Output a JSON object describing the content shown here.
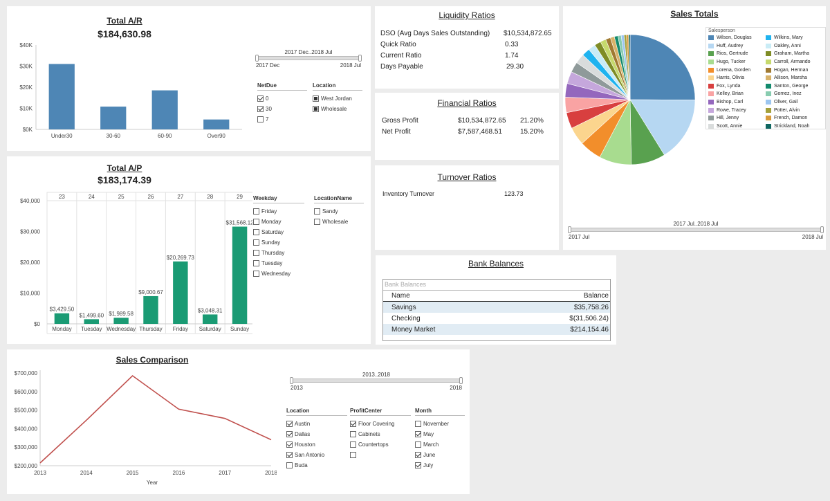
{
  "total_ar": {
    "title": "Total A/R",
    "total": "$184,630.98",
    "slider": {
      "label": "2017 Dec..2018 Jul",
      "start": "2017 Dec",
      "end": "2018 Jul"
    },
    "filters": {
      "netdue": {
        "title": "NetDue",
        "items": [
          {
            "label": "0",
            "checked": true
          },
          {
            "label": "30",
            "checked": true
          },
          {
            "label": "7",
            "checked": false
          }
        ]
      },
      "location": {
        "title": "Location",
        "items": [
          {
            "label": "West Jordan",
            "checked": true
          },
          {
            "label": "Wholesale",
            "checked": true
          }
        ]
      }
    },
    "chart_data": {
      "type": "bar",
      "categories": [
        "Under30",
        "30-60",
        "60-90",
        "Over90"
      ],
      "values": [
        31000,
        10800,
        18500,
        4700
      ],
      "y_ticks": [
        "$0K",
        "$10K",
        "$20K",
        "$30K",
        "$40K"
      ],
      "ylim": [
        0,
        40000
      ],
      "color": "#4e86b5"
    }
  },
  "total_ap": {
    "title": "Total A/P",
    "total": "$183,174.39",
    "filters": {
      "weekday": {
        "title": "Weekday",
        "items": [
          "Friday",
          "Monday",
          "Saturday",
          "Sunday",
          "Thursday",
          "Tuesday",
          "Wednesday"
        ]
      },
      "locationname": {
        "title": "LocationName",
        "items": [
          "Sandy",
          "Wholesale"
        ]
      }
    },
    "chart_data": {
      "type": "bar",
      "top_labels": [
        "23",
        "24",
        "25",
        "26",
        "27",
        "28",
        "29"
      ],
      "categories": [
        "Monday",
        "Tuesday",
        "Wednesday",
        "Thursday",
        "Friday",
        "Saturday",
        "Sunday"
      ],
      "values": [
        3429.5,
        1499.6,
        1989.58,
        9000.67,
        20269.73,
        3048.31,
        31568.12
      ],
      "data_labels": [
        "$3,429.50",
        "$1,499.60",
        "$1,989.58",
        "$9,000.67",
        "$20,269.73",
        "$3,048.31",
        "$31,568.12"
      ],
      "y_ticks": [
        "$0",
        "$10,000",
        "$20,000",
        "$30,000",
        "$40,000"
      ],
      "ylim": [
        0,
        40000
      ],
      "color": "#1a9b74"
    }
  },
  "liquidity": {
    "title": "Liquidity Ratios",
    "rows": [
      {
        "label": "DSO (Avg Days Sales Outstanding)",
        "value": "$10,534,872.65"
      },
      {
        "label": "Quick Ratio",
        "value": "0.33"
      },
      {
        "label": "Current Ratio",
        "value": "1.74"
      },
      {
        "label": "Days Payable",
        "value": "29.30"
      }
    ]
  },
  "financial": {
    "title": "Financial Ratios",
    "rows": [
      {
        "label": "Gross Profit",
        "value": "$10,534,872.65",
        "pct": "21.20%"
      },
      {
        "label": "Net Profit",
        "value": "$7,587,468.51",
        "pct": "15.20%"
      }
    ]
  },
  "turnover": {
    "title": "Turnover Ratios",
    "rows": [
      {
        "label": "Inventory Turnover",
        "value": "123.73"
      }
    ]
  },
  "bank": {
    "title": "Bank Balances",
    "table_title": "Bank Balances",
    "headers": {
      "name": "Name",
      "balance": "Balance"
    },
    "rows": [
      {
        "name": "Savings",
        "balance": "$35,758.26"
      },
      {
        "name": "Checking",
        "balance": "$(31,506.24)"
      },
      {
        "name": "Money Market",
        "balance": "$214,154.46"
      }
    ]
  },
  "sales_totals": {
    "title": "Sales Totals",
    "legend_title": "Salesperson",
    "slider": {
      "label": "2017 Jul..2018 Jul",
      "start": "2017 Jul",
      "end": "2018 Jul"
    },
    "chart_data": {
      "type": "pie",
      "slices": [
        {
          "name": "Wilson, Douglas",
          "value": 25.0,
          "color": "#4e86b5"
        },
        {
          "name": "Huff, Audrey",
          "value": 16.0,
          "color": "#b6d7f2"
        },
        {
          "name": "Rios, Gertrude",
          "value": 8.5,
          "color": "#59a14f"
        },
        {
          "name": "Hugo, Tucker",
          "value": 8.0,
          "color": "#a8dc8f"
        },
        {
          "name": "Lorena, Gorden",
          "value": 5.5,
          "color": "#f28e2b"
        },
        {
          "name": "Harris, Olivia",
          "value": 4.5,
          "color": "#fbd58e"
        },
        {
          "name": "Fox, Lynda",
          "value": 4.0,
          "color": "#d83f3f"
        },
        {
          "name": "Kelley, Brian",
          "value": 3.8,
          "color": "#f9a3a3"
        },
        {
          "name": "Bishop, Carl",
          "value": 3.4,
          "color": "#9467bd"
        },
        {
          "name": "Rowe, Tracey",
          "value": 3.0,
          "color": "#c5a7dc"
        },
        {
          "name": "Hill, Jenny",
          "value": 2.6,
          "color": "#8f9a9a"
        },
        {
          "name": "Scott, Annie",
          "value": 2.4,
          "color": "#d9dcdc"
        },
        {
          "name": "Wilkins, Mary",
          "value": 2.0,
          "color": "#1fb3ef"
        },
        {
          "name": "Oakley, Anni",
          "value": 1.8,
          "color": "#c9ecf6"
        },
        {
          "name": "Graham, Martha",
          "value": 1.6,
          "color": "#7f8c25"
        },
        {
          "name": "Carroll, Armando",
          "value": 1.4,
          "color": "#c6d96d"
        },
        {
          "name": "Hogan, Herman",
          "value": 1.2,
          "color": "#a07a32"
        },
        {
          "name": "Allison, Marsha",
          "value": 1.0,
          "color": "#d8b36a"
        },
        {
          "name": "Santon, George",
          "value": 0.9,
          "color": "#138a6d"
        },
        {
          "name": "Gomez, Inez",
          "value": 0.8,
          "color": "#88ccb0"
        },
        {
          "name": "Oliver, Gail",
          "value": 0.7,
          "color": "#9cc6f0"
        },
        {
          "name": "Potter, Alvin",
          "value": 0.6,
          "color": "#a3a03a"
        },
        {
          "name": "French, Damon",
          "value": 0.5,
          "color": "#d89a3a"
        },
        {
          "name": "Strickland, Noah",
          "value": 0.4,
          "color": "#0f6660"
        }
      ]
    }
  },
  "sales_comparison": {
    "title": "Sales Comparison",
    "slider": {
      "label": "2013..2018",
      "start": "2013",
      "end": "2018"
    },
    "filters": {
      "location": {
        "title": "Location",
        "items": [
          {
            "label": "Austin",
            "checked": true
          },
          {
            "label": "Dallas",
            "checked": true
          },
          {
            "label": "Houston",
            "checked": true
          },
          {
            "label": "San Antonio",
            "checked": true
          },
          {
            "label": "Buda",
            "checked": false
          }
        ]
      },
      "profitcenter": {
        "title": "ProfitCenter",
        "items": [
          {
            "label": "Floor Covering",
            "checked": true
          },
          {
            "label": "Cabinets",
            "checked": false
          },
          {
            "label": "Countertops",
            "checked": false
          },
          {
            "label": "",
            "checked": false
          }
        ]
      },
      "month": {
        "title": "Month",
        "items": [
          {
            "label": "November",
            "checked": false
          },
          {
            "label": "May",
            "checked": true
          },
          {
            "label": "March",
            "checked": false
          },
          {
            "label": "June",
            "checked": true
          },
          {
            "label": "July",
            "checked": true
          }
        ]
      }
    },
    "chart_data": {
      "type": "line",
      "x": [
        "2013",
        "2014",
        "2015",
        "2016",
        "2017",
        "2018"
      ],
      "values": [
        215000,
        445000,
        685000,
        505000,
        455000,
        340000
      ],
      "y_ticks": [
        "$200,000",
        "$300,000",
        "$400,000",
        "$500,000",
        "$600,000",
        "$700,000"
      ],
      "ylim": [
        200000,
        700000
      ],
      "xlabel": "Year",
      "color": "#c0504d"
    }
  }
}
